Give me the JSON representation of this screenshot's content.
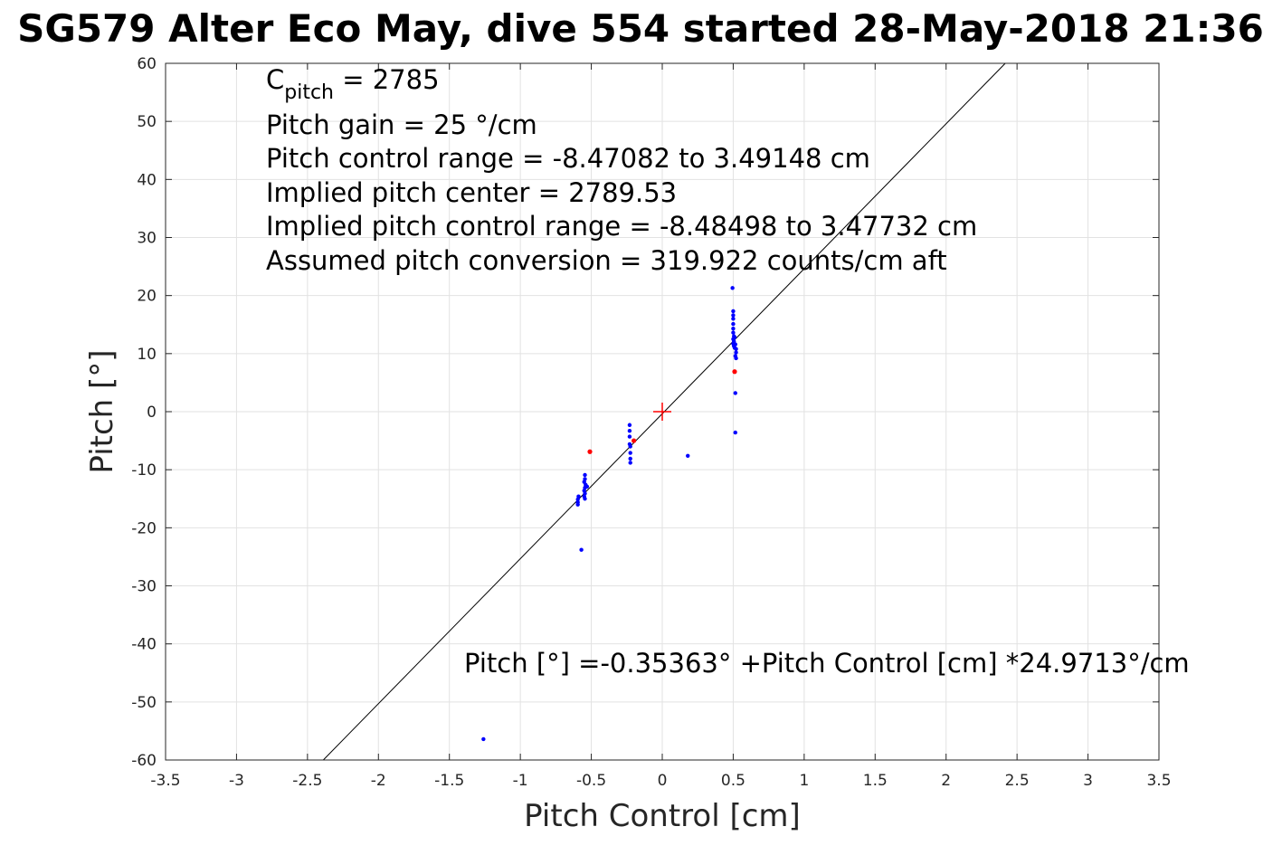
{
  "chart_data": {
    "type": "scatter",
    "title": "SG579 Alter Eco May, dive 554 started 28-May-2018 21:36",
    "xlabel": "Pitch Control [cm]",
    "ylabel": "Pitch [°]",
    "xlim": [
      -3.5,
      3.5
    ],
    "ylim": [
      -60,
      60
    ],
    "x_ticks": [
      "-3.5",
      "-3",
      "-2.5",
      "-2",
      "-1.5",
      "-1",
      "-0.5",
      "0",
      "0.5",
      "1",
      "1.5",
      "2",
      "2.5",
      "3",
      "3.5"
    ],
    "y_ticks": [
      "-60",
      "-50",
      "-40",
      "-30",
      "-20",
      "-10",
      "0",
      "10",
      "20",
      "30",
      "40",
      "50",
      "60"
    ],
    "grid": true,
    "annotations": {
      "c_pitch_symbol": "C",
      "c_pitch_subscript": "pitch",
      "c_pitch_value": " = 2785",
      "gain": "Pitch gain = 25 °/cm",
      "control_range": "Pitch control range = -8.47082 to 3.49148 cm",
      "implied_center": "Implied pitch center = 2789.53",
      "implied_range": "Implied pitch control range = -8.48498 to 3.47732 cm",
      "conversion": "Assumed pitch conversion = 319.922 counts/cm aft",
      "fit_equation": "Pitch [°] =-0.35363° +Pitch Control [cm] *24.9713°/cm"
    },
    "fit_line": {
      "intercept": -0.35363,
      "slope": 24.9713,
      "color": "#000000"
    },
    "center_marker": {
      "x": 0,
      "y": 0,
      "color": "#ff0000"
    },
    "series": [
      {
        "color": "#0000ff",
        "points": [
          [
            0.495,
            21.3
          ],
          [
            0.5,
            17.3
          ],
          [
            0.5,
            16.6
          ],
          [
            0.5,
            16.0
          ],
          [
            0.5,
            15.1
          ],
          [
            0.5,
            14.3
          ],
          [
            0.5,
            13.6
          ],
          [
            0.505,
            13.0
          ],
          [
            0.5,
            12.5
          ],
          [
            0.505,
            12.1
          ],
          [
            0.5,
            11.7
          ],
          [
            0.505,
            11.3
          ],
          [
            0.51,
            11.0
          ],
          [
            0.515,
            11.6
          ],
          [
            0.52,
            10.8
          ],
          [
            0.52,
            10.2
          ],
          [
            0.515,
            9.6
          ],
          [
            0.52,
            9.2
          ],
          [
            0.51,
            12.8
          ],
          [
            0.515,
            3.2
          ],
          [
            0.515,
            -3.6
          ],
          [
            0.18,
            -7.6
          ],
          [
            -0.23,
            -2.3
          ],
          [
            -0.23,
            -3.3
          ],
          [
            -0.23,
            -4.3
          ],
          [
            -0.23,
            -5.6
          ],
          [
            -0.225,
            -6.0
          ],
          [
            -0.225,
            -7.1
          ],
          [
            -0.225,
            -8.1
          ],
          [
            -0.225,
            -8.8
          ],
          [
            -0.545,
            -10.9
          ],
          [
            -0.545,
            -11.6
          ],
          [
            -0.55,
            -12.1
          ],
          [
            -0.54,
            -12.6
          ],
          [
            -0.545,
            -13.1
          ],
          [
            -0.55,
            -13.6
          ],
          [
            -0.545,
            -14.1
          ],
          [
            -0.55,
            -14.6
          ],
          [
            -0.545,
            -15.0
          ],
          [
            -0.53,
            -12.9
          ],
          [
            -0.59,
            -14.6
          ],
          [
            -0.595,
            -15.1
          ],
          [
            -0.595,
            -15.6
          ],
          [
            -0.595,
            -16.0
          ],
          [
            -0.57,
            -23.8
          ],
          [
            -1.26,
            -56.4
          ]
        ]
      },
      {
        "color": "#ff0000",
        "points": [
          [
            0.51,
            6.9
          ],
          [
            -0.51,
            -6.9
          ],
          [
            -0.2,
            -5.0
          ]
        ]
      }
    ]
  }
}
